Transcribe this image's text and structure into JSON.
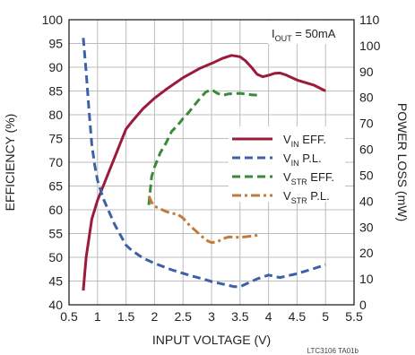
{
  "chart_data": {
    "type": "line",
    "title": "",
    "condition": {
      "main": "I",
      "sub": "OUT",
      "tail": " = 50mA"
    },
    "xlabel": "INPUT VOLTAGE (V)",
    "ylabel_left": "EFFICIENCY (%)",
    "ylabel_right": "POWER LOSS (mW)",
    "note": "LTC3106 TA01b",
    "xlim": [
      0.5,
      5.5
    ],
    "ylim_left": [
      40,
      100
    ],
    "ylim_right": [
      0,
      110
    ],
    "x_ticks": [
      "0.5",
      "1",
      "1.5",
      "2",
      "2.5",
      "3",
      "3.5",
      "4",
      "4.5",
      "5",
      "5.5"
    ],
    "y_left_ticks": [
      "40",
      "45",
      "50",
      "55",
      "60",
      "65",
      "70",
      "75",
      "80",
      "85",
      "90",
      "95",
      "100"
    ],
    "y_right_ticks": [
      "0",
      "10",
      "20",
      "30",
      "40",
      "50",
      "60",
      "70",
      "80",
      "90",
      "100",
      "110"
    ],
    "grid": true,
    "legend_position": "right-middle",
    "series": [
      {
        "legend": {
          "main": "V",
          "sub": "IN",
          "tail": " EFF."
        },
        "axis": "left",
        "style": "solid",
        "color": "#9b1b3a",
        "x": [
          0.75,
          0.8,
          0.9,
          1.0,
          1.1,
          1.2,
          1.3,
          1.4,
          1.5,
          1.6,
          1.8,
          2.0,
          2.2,
          2.5,
          2.8,
          3.0,
          3.2,
          3.35,
          3.5,
          3.6,
          3.7,
          3.8,
          3.9,
          4.0,
          4.1,
          4.2,
          4.3,
          4.5,
          4.8,
          5.0
        ],
        "y": [
          43,
          50,
          58,
          62,
          65,
          68,
          71,
          74,
          77,
          78.5,
          81.3,
          83.5,
          85.3,
          87.8,
          89.8,
          90.8,
          91.9,
          92.5,
          92.2,
          91.3,
          90,
          88.5,
          88,
          88.3,
          88.7,
          88.8,
          88.4,
          87.3,
          86.2,
          85
        ]
      },
      {
        "legend": {
          "main": "V",
          "sub": "IN",
          "tail": " P.L."
        },
        "axis": "right",
        "style": "dashed",
        "color": "#3b62a8",
        "x": [
          0.75,
          0.8,
          0.85,
          0.9,
          0.95,
          1.0,
          1.1,
          1.2,
          1.3,
          1.4,
          1.5,
          1.6,
          1.8,
          2.0,
          2.3,
          2.6,
          3.0,
          3.2,
          3.4,
          3.5,
          3.6,
          3.8,
          4.0,
          4.2,
          4.5,
          4.8,
          5.0
        ],
        "y": [
          103,
          90,
          75,
          62,
          54,
          48,
          41,
          36,
          31,
          27,
          23,
          21,
          18,
          16,
          13.5,
          11.5,
          9,
          8,
          7,
          7,
          8,
          10,
          11.5,
          10.5,
          12,
          14,
          15.5
        ]
      },
      {
        "legend": {
          "main": "V",
          "sub": "STR",
          "tail": " EFF."
        },
        "axis": "left",
        "style": "dashed",
        "color": "#3a8a3a",
        "x": [
          1.9,
          1.95,
          2.0,
          2.1,
          2.2,
          2.3,
          2.4,
          2.5,
          2.6,
          2.7,
          2.8,
          2.9,
          3.0,
          3.1,
          3.2,
          3.3,
          3.5,
          3.7,
          3.85
        ],
        "y": [
          61,
          67,
          69,
          72,
          74,
          76.5,
          77.7,
          79.2,
          80.5,
          82,
          83.5,
          84.8,
          85.3,
          84.5,
          84.1,
          84.4,
          84.5,
          84.2,
          84.1
        ]
      },
      {
        "legend": {
          "main": "V",
          "sub": "STR",
          "tail": " P.L."
        },
        "axis": "right",
        "style": "dashdot",
        "color": "#c07b3a",
        "x": [
          1.9,
          1.95,
          2.0,
          2.1,
          2.2,
          2.3,
          2.4,
          2.5,
          2.6,
          2.7,
          2.8,
          2.9,
          3.0,
          3.1,
          3.2,
          3.3,
          3.5,
          3.7,
          3.85
        ],
        "y": [
          42,
          39.5,
          38,
          37,
          36,
          35.3,
          35,
          33.5,
          31,
          29,
          27,
          25,
          24,
          24.3,
          25.5,
          26.2,
          26,
          26.5,
          27
        ]
      }
    ]
  }
}
